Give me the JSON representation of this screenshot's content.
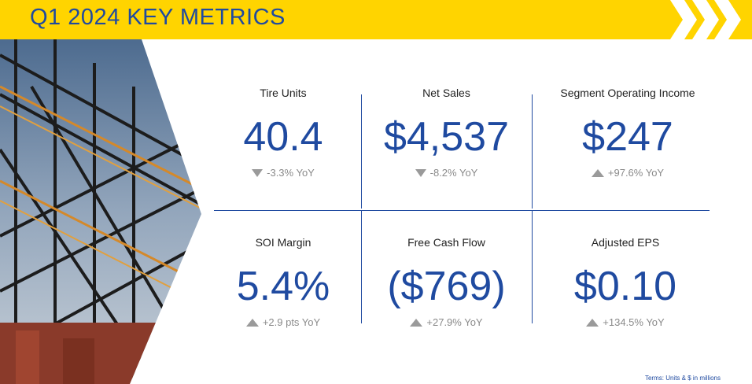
{
  "header": {
    "title": "Q1 2024 KEY METRICS"
  },
  "colors": {
    "accent_yellow": "#ffd400",
    "brand_blue": "#1f4aa0",
    "muted_text": "#8a8a8a"
  },
  "metrics": [
    {
      "label": "Tire Units",
      "value": "40.4",
      "change": "-3.3% YoY",
      "direction": "down"
    },
    {
      "label": "Net Sales",
      "value": "$4,537",
      "change": "-8.2% YoY",
      "direction": "down"
    },
    {
      "label": "Segment Operating Income",
      "value": "$247",
      "change": "+97.6% YoY",
      "direction": "up"
    },
    {
      "label": "SOI Margin",
      "value": "5.4%",
      "change": "+2.9 pts YoY",
      "direction": "up"
    },
    {
      "label": "Free Cash Flow",
      "value": "($769)",
      "change": "+27.9% YoY",
      "direction": "up"
    },
    {
      "label": "Adjusted EPS",
      "value": "$0.10",
      "change": "+134.5% YoY",
      "direction": "up"
    }
  ],
  "footnote": "Terms: Units & $ in millions"
}
